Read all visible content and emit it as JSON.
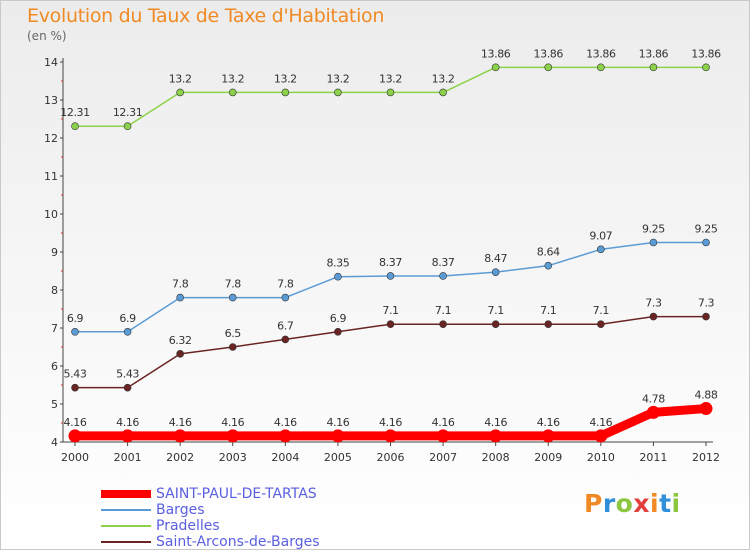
{
  "title": "Evolution du Taux de Taxe d'Habitation",
  "subtitle": "(en %)",
  "logo": {
    "text": "Proxiti",
    "colors": [
      "#f08a24",
      "#2f8fd8",
      "#8cc63f",
      "#e2403c",
      "#f08a24",
      "#2f8fd8",
      "#8cc63f"
    ]
  },
  "chart_data": {
    "type": "line",
    "x": [
      "2000",
      "2001",
      "2002",
      "2003",
      "2004",
      "2005",
      "2006",
      "2007",
      "2008",
      "2009",
      "2010",
      "2011",
      "2012"
    ],
    "ylim": [
      4,
      14
    ],
    "yticks": [
      "4",
      "5",
      "6",
      "7",
      "8",
      "9",
      "10",
      "11",
      "12",
      "13",
      "14"
    ],
    "grid": false,
    "legend_position": "bottom-left",
    "series": [
      {
        "name": "SAINT-PAUL-DE-TARTAS",
        "color": "#ff0000",
        "thick": true,
        "values": [
          4.16,
          4.16,
          4.16,
          4.16,
          4.16,
          4.16,
          4.16,
          4.16,
          4.16,
          4.16,
          4.16,
          4.78,
          4.88
        ],
        "labels": [
          "4.16",
          "4.16",
          "4.16",
          "4.16",
          "4.16",
          "4.16",
          "4.16",
          "4.16",
          "4.16",
          "4.16",
          "4.16",
          "4.78",
          "4.88"
        ]
      },
      {
        "name": "Barges",
        "color": "#5b9bd5",
        "thick": false,
        "values": [
          6.9,
          6.9,
          7.8,
          7.8,
          7.8,
          8.35,
          8.37,
          8.37,
          8.47,
          8.64,
          9.07,
          9.25,
          9.25
        ],
        "labels": [
          "6.9",
          "6.9",
          "7.8",
          "7.8",
          "7.8",
          "8.35",
          "8.37",
          "8.37",
          "8.47",
          "8.64",
          "9.07",
          "9.25",
          "9.25"
        ]
      },
      {
        "name": "Pradelles",
        "color": "#8cd14a",
        "thick": false,
        "values": [
          12.31,
          12.31,
          13.2,
          13.2,
          13.2,
          13.2,
          13.2,
          13.2,
          13.86,
          13.86,
          13.86,
          13.86,
          13.86
        ],
        "labels": [
          "12.31",
          "12.31",
          "13.2",
          "13.2",
          "13.2",
          "13.2",
          "13.2",
          "13.2",
          "13.86",
          "13.86",
          "13.86",
          "13.86",
          "13.86"
        ]
      },
      {
        "name": "Saint-Arcons-de-Barges",
        "color": "#6b2424",
        "thick": false,
        "values": [
          5.43,
          5.43,
          6.32,
          6.5,
          6.7,
          6.9,
          7.1,
          7.1,
          7.1,
          7.1,
          7.1,
          7.3,
          7.3
        ],
        "labels": [
          "5.43",
          "5.43",
          "6.32",
          "6.5",
          "6.7",
          "6.9",
          "7.1",
          "7.1",
          "7.1",
          "7.1",
          "7.1",
          "7.3",
          "7.3"
        ]
      }
    ]
  }
}
